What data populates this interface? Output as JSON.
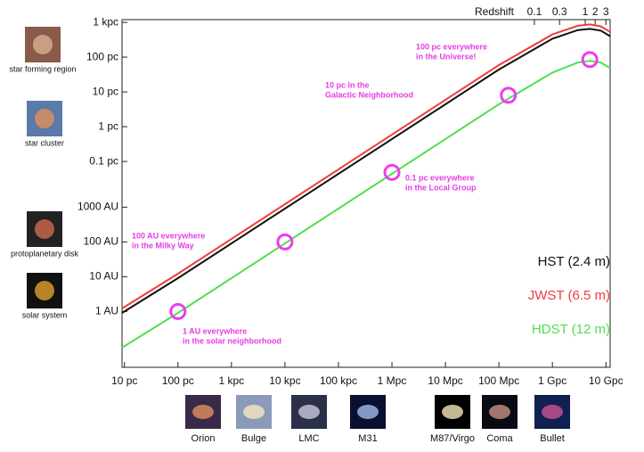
{
  "chart_data": {
    "type": "line",
    "xscale": "log",
    "yscale": "log",
    "xlim": [
      9,
      12000000000
    ],
    "ylim": [
      1.2e-07,
      1200
    ],
    "xticks": [
      {
        "value": 10,
        "label": "10 pc"
      },
      {
        "value": 100,
        "label": "100 pc"
      },
      {
        "value": 1000,
        "label": "1 kpc"
      },
      {
        "value": 10000,
        "label": "10 kpc"
      },
      {
        "value": 100000,
        "label": "100 kpc"
      },
      {
        "value": 1000000,
        "label": "1 Mpc"
      },
      {
        "value": 10000000,
        "label": "10 Mpc"
      },
      {
        "value": 100000000,
        "label": "100 Mpc"
      },
      {
        "value": 1000000000,
        "label": "1 Gpc"
      },
      {
        "value": 10000000000,
        "label": "10 Gpc"
      }
    ],
    "yticks": [
      {
        "value": 1000,
        "label": "1 kpc"
      },
      {
        "value": 100,
        "label": "100 pc"
      },
      {
        "value": 10,
        "label": "10 pc"
      },
      {
        "value": 1,
        "label": "1 pc"
      },
      {
        "value": 0.1,
        "label": "0.1 pc"
      },
      {
        "value": 0.004848,
        "label": "1000 AU"
      },
      {
        "value": 0.0004848,
        "label": "100 AU"
      },
      {
        "value": 4.848e-05,
        "label": "10 AU"
      },
      {
        "value": 4.848e-06,
        "label": "1 AU"
      }
    ],
    "x2label": "Redshift",
    "x2ticks": [
      {
        "value": 460000000,
        "label": "0.1"
      },
      {
        "value": 1360000000,
        "label": "0.3"
      },
      {
        "value": 4100000000,
        "label": "1"
      },
      {
        "value": 6300000000,
        "label": "2"
      },
      {
        "value": 10000000000,
        "label": "3"
      }
    ],
    "x": [
      9,
      100,
      100000000,
      1000000000,
      3000000000,
      5000000000,
      8000000000,
      12000000000
    ],
    "series": [
      {
        "name": "HST (2.4 m)",
        "color": "#111111",
        "values": [
          4.4e-06,
          4.4e-05,
          44,
          340,
          600,
          650,
          580,
          400
        ]
      },
      {
        "name": "JWST (6.5 m)",
        "color": "#f03c3c",
        "values": [
          5.9e-06,
          5.9e-05,
          59,
          450,
          800,
          870,
          770,
          530
        ]
      },
      {
        "name": "HDST (12 m)",
        "color": "#4fe04f",
        "values": [
          4.4e-07,
          4.4e-06,
          4.4,
          36,
          70,
          78,
          70,
          48
        ]
      }
    ],
    "highlights": {
      "color": "#ee3cee",
      "x": [
        100,
        10000,
        1000000,
        150000000,
        5000000000
      ],
      "values": [
        4.848e-06,
        0.0004848,
        0.0485,
        8,
        85
      ]
    },
    "annotations": [
      [
        "1 AU everywhere",
        "in the solar neighborhood"
      ],
      [
        "100 AU everywhere",
        "in the Milky Way"
      ],
      [
        "0.1 pc everywhere",
        "in the Local Group"
      ],
      [
        "10 pc in the",
        "Galactic Neighborhood"
      ],
      [
        "100 pc everywhere",
        "in the Universe!"
      ]
    ],
    "side_images": [
      "star forming region",
      "star cluster",
      "protoplanetary disk",
      "solar system"
    ],
    "bottom_images": [
      "Orion",
      "Bulge",
      "LMC",
      "M31",
      "M87/Virgo",
      "Coma",
      "Bullet"
    ]
  }
}
